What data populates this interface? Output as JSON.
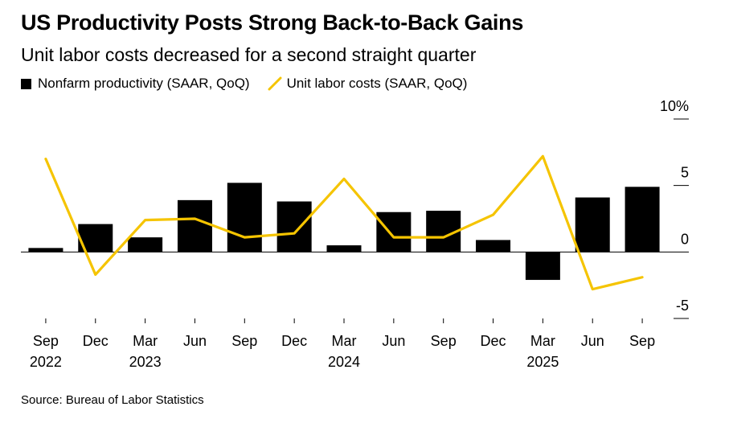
{
  "title": "US Productivity Posts Strong Back-to-Back Gains",
  "subtitle": "Unit labor costs decreased for a second straight quarter",
  "source": "Source: Bureau of Labor Statistics",
  "colors": {
    "bar": "#000000",
    "line": "#f5c400"
  },
  "chart_data": {
    "type": "bar+line",
    "categories": [
      "Sep 2022",
      "Dec 2022",
      "Mar 2023",
      "Jun 2023",
      "Sep 2023",
      "Dec 2023",
      "Mar 2024",
      "Jun 2024",
      "Sep 2024",
      "Dec 2024",
      "Mar 2025",
      "Jun 2025",
      "Sep 2025"
    ],
    "x_tick_labels": [
      "Sep",
      "Dec",
      "Mar",
      "Jun",
      "Sep",
      "Dec",
      "Mar",
      "Jun",
      "Sep",
      "Dec",
      "Mar",
      "Jun",
      "Sep"
    ],
    "x_year_labels": [
      {
        "index": 0,
        "label": "2022"
      },
      {
        "index": 2,
        "label": "2023"
      },
      {
        "index": 6,
        "label": "2024"
      },
      {
        "index": 10,
        "label": "2025"
      }
    ],
    "y_ticks": [
      {
        "value": 10,
        "label": "10%"
      },
      {
        "value": 5,
        "label": "5"
      },
      {
        "value": 0,
        "label": "0"
      },
      {
        "value": -5,
        "label": "-5"
      }
    ],
    "ylim": [
      -5,
      10
    ],
    "y_axis_side": "right",
    "gridlines": false,
    "series": [
      {
        "name": "Nonfarm productivity (SAAR, QoQ)",
        "type": "bar",
        "values": [
          0.3,
          2.1,
          1.1,
          3.9,
          5.2,
          3.8,
          0.5,
          3.0,
          3.1,
          0.9,
          -2.1,
          4.1,
          4.9
        ]
      },
      {
        "name": "Unit labor costs (SAAR, QoQ)",
        "type": "line",
        "values": [
          7.0,
          -1.7,
          2.4,
          2.5,
          1.1,
          1.4,
          5.5,
          1.1,
          1.1,
          2.8,
          7.2,
          -2.8,
          -1.9
        ]
      }
    ]
  }
}
